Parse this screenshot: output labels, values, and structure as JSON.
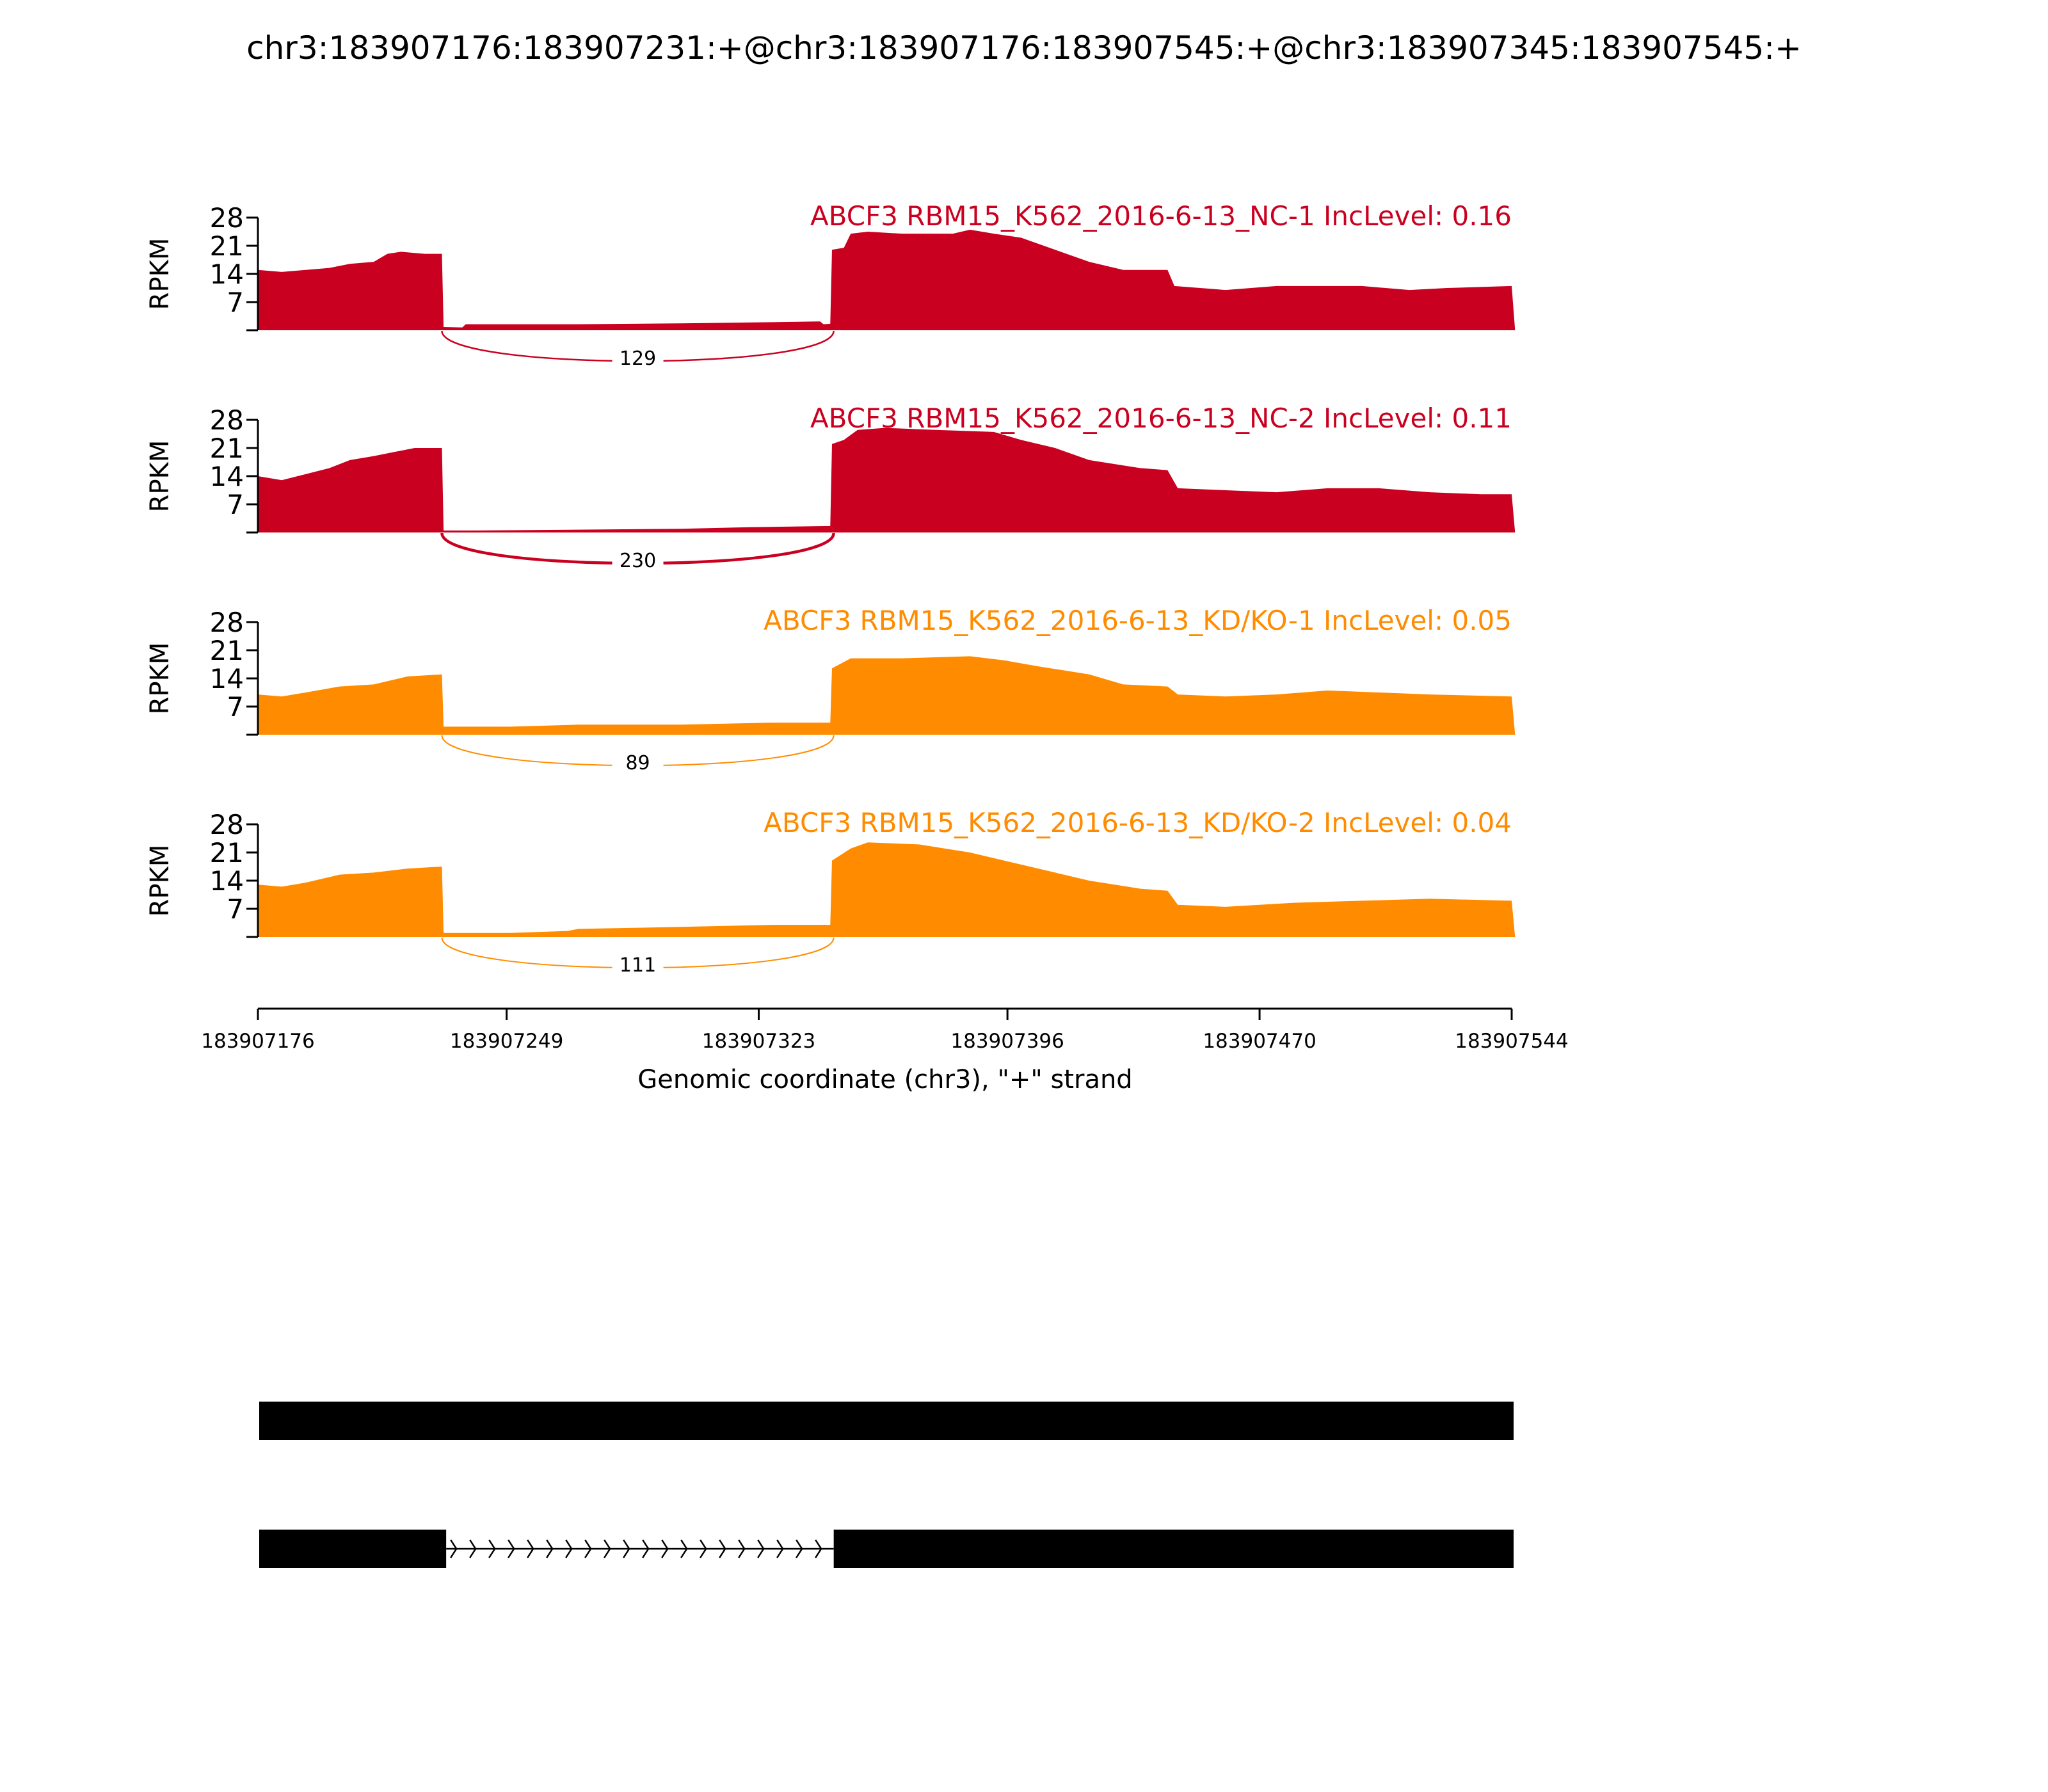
{
  "title": "chr3:183907176:183907231:+@chr3:183907176:183907545:+@chr3:183907345:183907545:+",
  "colors": {
    "nc": "#CA0020",
    "kd": "#FF8C00",
    "axis": "#000000",
    "gene": "#000000"
  },
  "chart_data": {
    "type": "area",
    "title": "chr3:183907176:183907231:+@chr3:183907176:183907545:+@chr3:183907345:183907545:+",
    "xlabel": "Genomic coordinate (chr3), \"+\" strand",
    "xlim": [
      183907176,
      183907544
    ],
    "x_ticks": [
      183907176,
      183907249,
      183907323,
      183907396,
      183907470,
      183907544
    ],
    "x_tick_labels": [
      "183907176",
      "183907249",
      "183907323",
      "183907396",
      "183907470",
      "183907544"
    ],
    "ylabel": "RPKM",
    "ylim": [
      0,
      28
    ],
    "y_ticks": [
      7,
      14,
      21,
      28
    ],
    "y_tick_labels": [
      "7",
      "14",
      "21",
      "28"
    ],
    "grid": false,
    "tracks": [
      {
        "label": "ABCF3 RBM15_K562_2016-6-13_NC-1 IncLevel: 0.16",
        "color_key": "nc",
        "junction": {
          "start": 183907230,
          "end": 183907345,
          "count": "129",
          "thickness": 2.5
        },
        "coverage": [
          [
            183907176,
            15
          ],
          [
            183907183,
            14.5
          ],
          [
            183907190,
            15
          ],
          [
            183907197,
            15.5
          ],
          [
            183907203,
            16.5
          ],
          [
            183907210,
            17
          ],
          [
            183907214,
            19
          ],
          [
            183907218,
            19.5
          ],
          [
            183907225,
            19
          ],
          [
            183907230,
            19
          ],
          [
            183907230.5,
            0.8
          ],
          [
            183907236,
            0.7
          ],
          [
            183907237,
            1.5
          ],
          [
            183907270,
            1.5
          ],
          [
            183907300,
            1.7
          ],
          [
            183907327,
            2
          ],
          [
            183907341,
            2.2
          ],
          [
            183907342,
            1.5
          ],
          [
            183907344,
            1.6
          ],
          [
            183907344.5,
            20
          ],
          [
            183907348,
            20.5
          ],
          [
            183907350,
            24
          ],
          [
            183907355,
            24.5
          ],
          [
            183907365,
            24
          ],
          [
            183907380,
            24
          ],
          [
            183907385,
            25
          ],
          [
            183907392,
            24
          ],
          [
            183907400,
            23
          ],
          [
            183907410,
            20
          ],
          [
            183907420,
            17
          ],
          [
            183907430,
            15
          ],
          [
            183907443,
            15
          ],
          [
            183907445,
            11
          ],
          [
            183907460,
            10
          ],
          [
            183907475,
            11
          ],
          [
            183907500,
            11
          ],
          [
            183907514,
            10
          ],
          [
            183907525,
            10.5
          ],
          [
            183907544,
            11
          ],
          [
            183907545,
            0
          ]
        ]
      },
      {
        "label": "ABCF3 RBM15_K562_2016-6-13_NC-2 IncLevel: 0.11",
        "color_key": "nc",
        "junction": {
          "start": 183907230,
          "end": 183907345,
          "count": "230",
          "thickness": 4.5
        },
        "coverage": [
          [
            183907176,
            14
          ],
          [
            183907183,
            13
          ],
          [
            183907190,
            14.5
          ],
          [
            183907197,
            16
          ],
          [
            183907203,
            18
          ],
          [
            183907210,
            19
          ],
          [
            183907216,
            20
          ],
          [
            183907222,
            21
          ],
          [
            183907230,
            21
          ],
          [
            183907230.5,
            0.5
          ],
          [
            183907240,
            0.5
          ],
          [
            183907270,
            0.7
          ],
          [
            183907300,
            0.9
          ],
          [
            183907320,
            1.3
          ],
          [
            183907344,
            1.6
          ],
          [
            183907344.5,
            22
          ],
          [
            183907348,
            23
          ],
          [
            183907352,
            25.5
          ],
          [
            183907360,
            26
          ],
          [
            183907375,
            25.5
          ],
          [
            183907392,
            25
          ],
          [
            183907400,
            23
          ],
          [
            183907410,
            21
          ],
          [
            183907420,
            18
          ],
          [
            183907435,
            16
          ],
          [
            183907443,
            15.5
          ],
          [
            183907446,
            11
          ],
          [
            183907460,
            10.5
          ],
          [
            183907475,
            10
          ],
          [
            183907490,
            11
          ],
          [
            183907505,
            11
          ],
          [
            183907520,
            10
          ],
          [
            183907535,
            9.5
          ],
          [
            183907544,
            9.5
          ],
          [
            183907545,
            0
          ]
        ]
      },
      {
        "label": "ABCF3 RBM15_K562_2016-6-13_KD/KO-1 IncLevel: 0.05",
        "color_key": "kd",
        "junction": {
          "start": 183907230,
          "end": 183907345,
          "count": "89",
          "thickness": 2
        },
        "coverage": [
          [
            183907176,
            10
          ],
          [
            183907183,
            9.5
          ],
          [
            183907190,
            10.5
          ],
          [
            183907200,
            12
          ],
          [
            183907210,
            12.5
          ],
          [
            183907220,
            14.5
          ],
          [
            183907230,
            15
          ],
          [
            183907230.5,
            2
          ],
          [
            183907250,
            2
          ],
          [
            183907270,
            2.5
          ],
          [
            183907300,
            2.5
          ],
          [
            183907327,
            3
          ],
          [
            183907344,
            3
          ],
          [
            183907344.5,
            16.5
          ],
          [
            183907350,
            19
          ],
          [
            183907365,
            19
          ],
          [
            183907385,
            19.5
          ],
          [
            183907395,
            18.5
          ],
          [
            183907405,
            17
          ],
          [
            183907420,
            15
          ],
          [
            183907430,
            12.5
          ],
          [
            183907443,
            12
          ],
          [
            183907446,
            10
          ],
          [
            183907460,
            9.5
          ],
          [
            183907475,
            10
          ],
          [
            183907490,
            11
          ],
          [
            183907505,
            10.5
          ],
          [
            183907520,
            10
          ],
          [
            183907544,
            9.5
          ],
          [
            183907545,
            0
          ]
        ]
      },
      {
        "label": "ABCF3 RBM15_K562_2016-6-13_KD/KO-2 IncLevel: 0.04",
        "color_key": "kd",
        "junction": {
          "start": 183907230,
          "end": 183907345,
          "count": "111",
          "thickness": 2
        },
        "coverage": [
          [
            183907176,
            13
          ],
          [
            183907183,
            12.5
          ],
          [
            183907190,
            13.5
          ],
          [
            183907200,
            15.5
          ],
          [
            183907210,
            16
          ],
          [
            183907220,
            17
          ],
          [
            183907230,
            17.5
          ],
          [
            183907230.5,
            1
          ],
          [
            183907250,
            1
          ],
          [
            183907267,
            1.5
          ],
          [
            183907270,
            2
          ],
          [
            183907300,
            2.5
          ],
          [
            183907327,
            3
          ],
          [
            183907344,
            3
          ],
          [
            183907344.5,
            19
          ],
          [
            183907350,
            22
          ],
          [
            183907355,
            23.5
          ],
          [
            183907370,
            23
          ],
          [
            183907385,
            21
          ],
          [
            183907395,
            19
          ],
          [
            183907405,
            17
          ],
          [
            183907420,
            14
          ],
          [
            183907435,
            12
          ],
          [
            183907443,
            11.5
          ],
          [
            183907446,
            8
          ],
          [
            183907460,
            7.5
          ],
          [
            183907480,
            8.5
          ],
          [
            183907500,
            9
          ],
          [
            183907520,
            9.5
          ],
          [
            183907544,
            9
          ],
          [
            183907545,
            0
          ]
        ]
      }
    ],
    "gene_models": [
      {
        "exons": [
          [
            183907176,
            183907545
          ]
        ]
      },
      {
        "exons": [
          [
            183907176,
            183907231
          ],
          [
            183907345,
            183907545
          ]
        ],
        "intron_arrows": "right"
      }
    ]
  }
}
